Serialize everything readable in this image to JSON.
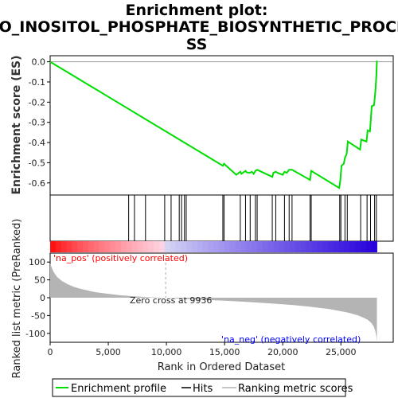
{
  "chart_data": {
    "type": "line",
    "title_lines": [
      "Enrichment plot:",
      "GO_INOSITOL_PHOSPHATE_BIOSYNTHETIC_PROCE",
      "SS"
    ],
    "top_panel": {
      "ylabel": "Enrichment score (ES)",
      "ylim": [
        -0.66,
        0.03
      ],
      "yticks": [
        0.0,
        -0.1,
        -0.2,
        -0.3,
        -0.4,
        -0.5,
        -0.6
      ],
      "ytick_labels": [
        "0.0",
        "-0.1",
        "-0.2",
        "-0.3",
        "-0.4",
        "-0.5",
        "-0.6"
      ],
      "series": [
        {
          "name": "Enrichment profile",
          "color": "#00dd00",
          "x": [
            0,
            14850,
            14950,
            16000,
            16350,
            16450,
            16800,
            16900,
            17150,
            17350,
            17500,
            17650,
            17800,
            19100,
            19200,
            19400,
            19550,
            20000,
            20150,
            20350,
            20550,
            20800,
            22350,
            22450,
            24850,
            24950,
            25050,
            25250,
            25350,
            25500,
            25600,
            26650,
            26750,
            27200,
            27300,
            27500,
            27650,
            27850,
            27950,
            28050,
            28100
          ],
          "y": [
            0.0,
            -0.515,
            -0.505,
            -0.56,
            -0.545,
            -0.555,
            -0.54,
            -0.548,
            -0.55,
            -0.545,
            -0.555,
            -0.54,
            -0.535,
            -0.57,
            -0.55,
            -0.545,
            -0.55,
            -0.56,
            -0.545,
            -0.55,
            -0.535,
            -0.535,
            -0.585,
            -0.54,
            -0.625,
            -0.59,
            -0.515,
            -0.505,
            -0.475,
            -0.455,
            -0.395,
            -0.435,
            -0.385,
            -0.395,
            -0.34,
            -0.345,
            -0.22,
            -0.215,
            -0.155,
            -0.07,
            0.005
          ]
        }
      ]
    },
    "hits": {
      "name": "Hits",
      "color": "#000000",
      "x": [
        6750,
        7250,
        8200,
        9850,
        10400,
        11100,
        11300,
        11550,
        11700,
        14850,
        14950,
        16350,
        16800,
        17200,
        17650,
        17800,
        19100,
        19400,
        20150,
        20550,
        20800,
        22350,
        22450,
        24900,
        25000,
        25350,
        25550,
        26700,
        27250,
        27550,
        27900,
        28050
      ]
    },
    "ranked_list": {
      "name": "Ranking metric scores",
      "color": "#b4b4b4",
      "ylabel": "Ranked list metric (PreRanked)",
      "xlabel": "Rank in Ordered Dataset",
      "ylim": [
        -125,
        125
      ],
      "yticks": [
        100,
        50,
        0,
        -50,
        -100
      ],
      "ytick_labels": [
        "100",
        "50",
        "0",
        "-50",
        "-100"
      ],
      "xlim": [
        0,
        29500
      ],
      "xticks": [
        0,
        5000,
        10000,
        15000,
        20000,
        25000
      ],
      "xtick_labels": [
        "0",
        "5,000",
        "10,000",
        "15,000",
        "20,000",
        "25,000"
      ],
      "n_genes": 28100,
      "zero_cross": 9936,
      "zero_cross_label": "Zero cross at 9936",
      "pos_label": "'na_pos' (positively correlated)",
      "neg_label": "'na_neg' (negatively correlated)",
      "pos_color": "#ff0000",
      "neg_color": "#0000ff",
      "curve_x": [
        0,
        300,
        600,
        1000,
        1500,
        2000,
        2500,
        3000,
        3500,
        4000,
        5000,
        6000,
        7000,
        8000,
        9000,
        9936,
        11000,
        12000,
        13000,
        14000,
        15000,
        16000,
        17000,
        18000,
        19000,
        20000,
        21000,
        22000,
        23000,
        24000,
        25000,
        25500,
        26000,
        26500,
        27000,
        27300,
        27600,
        27800,
        27950,
        28050,
        28100
      ],
      "curve_y": [
        95,
        72,
        58,
        47,
        38,
        31,
        26,
        22,
        18,
        15,
        11,
        7,
        4.5,
        2.5,
        1,
        0,
        -2,
        -4,
        -5.5,
        -7,
        -8.5,
        -10,
        -12,
        -14,
        -16,
        -18.5,
        -21,
        -24,
        -28,
        -32,
        -38,
        -41,
        -45,
        -50,
        -57,
        -62,
        -70,
        -80,
        -92,
        -108,
        -122
      ]
    },
    "legend": [
      {
        "label": "Enrichment profile",
        "color": "#00dd00"
      },
      {
        "label": "Hits",
        "color": "#000000"
      },
      {
        "label": "Ranking metric scores",
        "color": "#b4b4b4"
      }
    ],
    "grid": false
  }
}
